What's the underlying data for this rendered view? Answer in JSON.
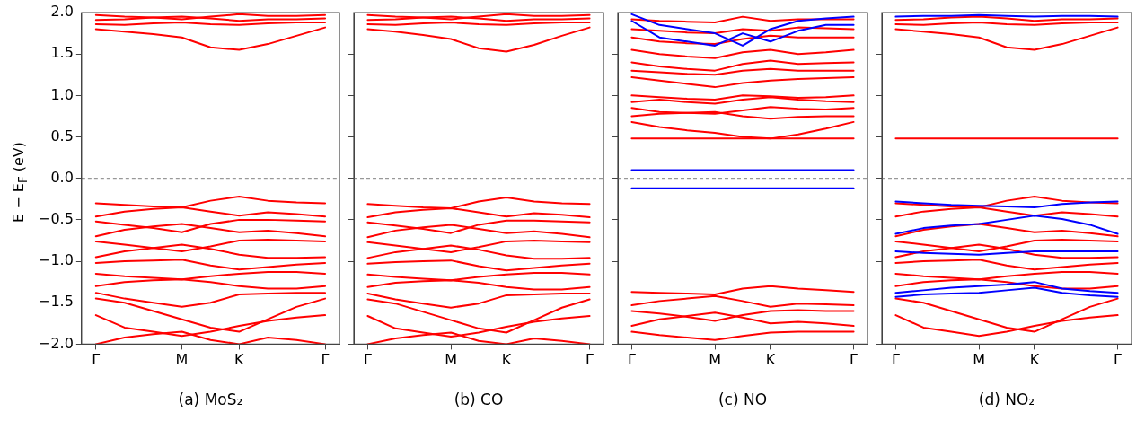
{
  "chart_data": [
    {
      "type": "line",
      "xlabel": "(a) MoS₂",
      "ylabel": "E − E$_{F}$ (eV)",
      "categories": [
        "Γ",
        null,
        null,
        "M",
        null,
        "K",
        null,
        null,
        "Γ"
      ],
      "ylim": [
        -2,
        2
      ],
      "yticks": [
        {
          "value": -2,
          "label": "−2.0"
        },
        {
          "value": -1.5,
          "label": "−1.5"
        },
        {
          "value": -1,
          "label": "−1.0"
        },
        {
          "value": -0.5,
          "label": "−0.5"
        },
        {
          "value": 0,
          "label": "0.0"
        },
        {
          "value": 0.5,
          "label": "0.5"
        },
        {
          "value": 1,
          "label": "1.0"
        },
        {
          "value": 1.5,
          "label": "1.5"
        },
        {
          "value": 2,
          "label": "2.0"
        }
      ],
      "grid": false,
      "legend": false,
      "marker": "none",
      "line_style": "solid",
      "ref_lines": [
        {
          "axis": "y",
          "value": 0,
          "color": "#808080",
          "line_style": "dashed"
        }
      ],
      "series": [
        {
          "color": "#ff0000",
          "values": [
            1.8,
            1.77,
            1.74,
            1.7,
            1.58,
            1.55,
            1.62,
            1.72,
            1.82
          ]
        },
        {
          "color": "#ff0000",
          "values": [
            1.86,
            1.85,
            1.87,
            1.88,
            1.86,
            1.85,
            1.87,
            1.88,
            1.88
          ]
        },
        {
          "color": "#ff0000",
          "values": [
            1.91,
            1.92,
            1.94,
            1.95,
            1.93,
            1.9,
            1.92,
            1.92,
            1.93
          ]
        },
        {
          "color": "#ff0000",
          "values": [
            1.97,
            1.95,
            1.94,
            1.92,
            1.95,
            1.98,
            1.96,
            1.96,
            1.97
          ]
        },
        {
          "color": "#ff0000",
          "values": [
            -0.3,
            -0.32,
            -0.34,
            -0.35,
            -0.27,
            -0.22,
            -0.27,
            -0.29,
            -0.3
          ]
        },
        {
          "color": "#ff0000",
          "values": [
            -0.46,
            -0.4,
            -0.37,
            -0.35,
            -0.4,
            -0.45,
            -0.41,
            -0.43,
            -0.46
          ]
        },
        {
          "color": "#ff0000",
          "values": [
            -0.52,
            -0.56,
            -0.6,
            -0.65,
            -0.55,
            -0.5,
            -0.5,
            -0.51,
            -0.52
          ]
        },
        {
          "color": "#ff0000",
          "values": [
            -0.7,
            -0.62,
            -0.58,
            -0.55,
            -0.6,
            -0.65,
            -0.63,
            -0.66,
            -0.7
          ]
        },
        {
          "color": "#ff0000",
          "values": [
            -0.76,
            -0.8,
            -0.84,
            -0.88,
            -0.82,
            -0.75,
            -0.74,
            -0.75,
            -0.76
          ]
        },
        {
          "color": "#ff0000",
          "values": [
            -0.95,
            -0.88,
            -0.84,
            -0.8,
            -0.85,
            -0.92,
            -0.96,
            -0.96,
            -0.95
          ]
        },
        {
          "color": "#ff0000",
          "values": [
            -1.02,
            -1,
            -0.99,
            -0.98,
            -1.05,
            -1.1,
            -1.07,
            -1.04,
            -1.02
          ]
        },
        {
          "color": "#ff0000",
          "values": [
            -1.15,
            -1.18,
            -1.2,
            -1.22,
            -1.18,
            -1.15,
            -1.13,
            -1.13,
            -1.15
          ]
        },
        {
          "color": "#ff0000",
          "values": [
            -1.3,
            -1.25,
            -1.23,
            -1.22,
            -1.25,
            -1.3,
            -1.33,
            -1.33,
            -1.3
          ]
        },
        {
          "color": "#ff0000",
          "values": [
            -1.38,
            -1.45,
            -1.5,
            -1.55,
            -1.5,
            -1.4,
            -1.39,
            -1.38,
            -1.38
          ]
        },
        {
          "color": "#ff0000",
          "values": [
            -1.45,
            -1.5,
            -1.6,
            -1.7,
            -1.8,
            -1.85,
            -1.7,
            -1.55,
            -1.45
          ]
        },
        {
          "color": "#ff0000",
          "values": [
            -1.65,
            -1.8,
            -1.85,
            -1.9,
            -1.85,
            -1.78,
            -1.72,
            -1.68,
            -1.65
          ]
        },
        {
          "color": "#ff0000",
          "values": [
            -2,
            -1.92,
            -1.88,
            -1.85,
            -1.95,
            -2,
            -1.92,
            -1.95,
            -2
          ]
        }
      ]
    },
    {
      "type": "line",
      "xlabel": "(b) CO",
      "tick_labels": "x",
      "categories": [
        "Γ",
        null,
        null,
        "M",
        null,
        "K",
        null,
        null,
        "Γ"
      ],
      "ylim": [
        -2,
        2
      ],
      "yticks": [
        {
          "value": -2,
          "label": null
        },
        {
          "value": -1.5,
          "label": null
        },
        {
          "value": -1,
          "label": null
        },
        {
          "value": -0.5,
          "label": null
        },
        {
          "value": 0,
          "label": null
        },
        {
          "value": 0.5,
          "label": null
        },
        {
          "value": 1,
          "label": null
        },
        {
          "value": 1.5,
          "label": null
        },
        {
          "value": 2,
          "label": null
        }
      ],
      "grid": false,
      "legend": false,
      "marker": "none",
      "line_style": "solid",
      "ref_lines": [
        {
          "axis": "y",
          "value": 0,
          "color": "#808080",
          "line_style": "dashed"
        }
      ],
      "series": [
        {
          "color": "#ff0000",
          "values": [
            1.8,
            1.77,
            1.73,
            1.68,
            1.57,
            1.53,
            1.61,
            1.72,
            1.82
          ]
        },
        {
          "color": "#ff0000",
          "values": [
            1.86,
            1.85,
            1.87,
            1.88,
            1.86,
            1.85,
            1.87,
            1.88,
            1.88
          ]
        },
        {
          "color": "#ff0000",
          "values": [
            1.91,
            1.92,
            1.94,
            1.95,
            1.93,
            1.9,
            1.92,
            1.92,
            1.93
          ]
        },
        {
          "color": "#ff0000",
          "values": [
            1.97,
            1.95,
            1.94,
            1.92,
            1.95,
            1.98,
            1.96,
            1.96,
            1.97
          ]
        },
        {
          "color": "#ff0000",
          "values": [
            -0.31,
            -0.33,
            -0.35,
            -0.36,
            -0.28,
            -0.23,
            -0.28,
            -0.3,
            -0.31
          ]
        },
        {
          "color": "#ff0000",
          "values": [
            -0.47,
            -0.41,
            -0.38,
            -0.36,
            -0.41,
            -0.46,
            -0.42,
            -0.44,
            -0.47
          ]
        },
        {
          "color": "#ff0000",
          "values": [
            -0.53,
            -0.57,
            -0.61,
            -0.66,
            -0.56,
            -0.51,
            -0.51,
            -0.52,
            -0.53
          ]
        },
        {
          "color": "#ff0000",
          "values": [
            -0.71,
            -0.63,
            -0.59,
            -0.56,
            -0.61,
            -0.66,
            -0.64,
            -0.67,
            -0.71
          ]
        },
        {
          "color": "#ff0000",
          "values": [
            -0.77,
            -0.81,
            -0.85,
            -0.89,
            -0.83,
            -0.76,
            -0.75,
            -0.76,
            -0.77
          ]
        },
        {
          "color": "#ff0000",
          "values": [
            -0.96,
            -0.89,
            -0.85,
            -0.81,
            -0.86,
            -0.93,
            -0.97,
            -0.97,
            -0.96
          ]
        },
        {
          "color": "#ff0000",
          "values": [
            -1.03,
            -1.01,
            -1,
            -0.99,
            -1.06,
            -1.11,
            -1.08,
            -1.05,
            -1.03
          ]
        },
        {
          "color": "#ff0000",
          "values": [
            -1.16,
            -1.19,
            -1.21,
            -1.23,
            -1.19,
            -1.16,
            -1.14,
            -1.14,
            -1.16
          ]
        },
        {
          "color": "#ff0000",
          "values": [
            -1.31,
            -1.26,
            -1.24,
            -1.23,
            -1.26,
            -1.31,
            -1.34,
            -1.34,
            -1.31
          ]
        },
        {
          "color": "#ff0000",
          "values": [
            -1.39,
            -1.46,
            -1.51,
            -1.56,
            -1.51,
            -1.41,
            -1.4,
            -1.39,
            -1.39
          ]
        },
        {
          "color": "#ff0000",
          "values": [
            -1.46,
            -1.51,
            -1.61,
            -1.71,
            -1.81,
            -1.86,
            -1.71,
            -1.56,
            -1.46
          ]
        },
        {
          "color": "#ff0000",
          "values": [
            -1.66,
            -1.81,
            -1.86,
            -1.91,
            -1.86,
            -1.79,
            -1.73,
            -1.69,
            -1.66
          ]
        },
        {
          "color": "#ff0000",
          "values": [
            -2,
            -1.93,
            -1.89,
            -1.86,
            -1.96,
            -2,
            -1.93,
            -1.96,
            -2
          ]
        }
      ]
    },
    {
      "type": "line",
      "xlabel": "(c) NO",
      "tick_labels": "x",
      "categories": [
        "Γ",
        null,
        null,
        "M",
        null,
        "K",
        null,
        null,
        "Γ"
      ],
      "ylim": [
        -2,
        2
      ],
      "yticks": [
        {
          "value": -2,
          "label": null
        },
        {
          "value": -1.5,
          "label": null
        },
        {
          "value": -1,
          "label": null
        },
        {
          "value": -0.5,
          "label": null
        },
        {
          "value": 0,
          "label": null
        },
        {
          "value": 0.5,
          "label": null
        },
        {
          "value": 1,
          "label": null
        },
        {
          "value": 1.5,
          "label": null
        },
        {
          "value": 2,
          "label": null
        }
      ],
      "grid": false,
      "legend": false,
      "marker": "none",
      "line_style": "solid",
      "ref_lines": [
        {
          "axis": "y",
          "value": 0,
          "color": "#808080",
          "line_style": "dashed"
        }
      ],
      "series": [
        {
          "color": "#0000ff",
          "values": [
            1.98,
            1.85,
            1.8,
            1.75,
            1.6,
            1.8,
            1.9,
            1.93,
            1.95
          ]
        },
        {
          "color": "#0000ff",
          "values": [
            1.9,
            1.7,
            1.65,
            1.6,
            1.75,
            1.65,
            1.78,
            1.85,
            1.85
          ]
        },
        {
          "color": "#0000ff",
          "values": [
            0.1,
            0.1,
            0.1,
            0.1,
            0.1,
            0.1,
            0.1,
            0.1,
            0.1
          ]
        },
        {
          "color": "#0000ff",
          "values": [
            -0.12,
            -0.12,
            -0.12,
            -0.12,
            -0.12,
            -0.12,
            -0.12,
            -0.12,
            -0.12
          ]
        },
        {
          "color": "#ff0000",
          "values": [
            0.48,
            0.48,
            0.48,
            0.48,
            0.48,
            0.48,
            0.48,
            0.48,
            0.48
          ]
        },
        {
          "color": "#ff0000",
          "values": [
            0.68,
            0.62,
            0.58,
            0.55,
            0.5,
            0.48,
            0.53,
            0.6,
            0.68
          ]
        },
        {
          "color": "#ff0000",
          "values": [
            0.75,
            0.78,
            0.79,
            0.8,
            0.75,
            0.72,
            0.74,
            0.75,
            0.75
          ]
        },
        {
          "color": "#ff0000",
          "values": [
            0.85,
            0.8,
            0.79,
            0.78,
            0.82,
            0.86,
            0.84,
            0.83,
            0.85
          ]
        },
        {
          "color": "#ff0000",
          "values": [
            0.92,
            0.95,
            0.92,
            0.9,
            0.95,
            0.98,
            0.95,
            0.93,
            0.92
          ]
        },
        {
          "color": "#ff0000",
          "values": [
            1,
            0.98,
            0.96,
            0.95,
            1,
            0.99,
            0.97,
            0.98,
            1
          ]
        },
        {
          "color": "#ff0000",
          "values": [
            1.22,
            1.18,
            1.14,
            1.1,
            1.15,
            1.18,
            1.2,
            1.21,
            1.22
          ]
        },
        {
          "color": "#ff0000",
          "values": [
            1.3,
            1.28,
            1.26,
            1.25,
            1.3,
            1.32,
            1.3,
            1.3,
            1.3
          ]
        },
        {
          "color": "#ff0000",
          "values": [
            1.4,
            1.35,
            1.32,
            1.3,
            1.38,
            1.42,
            1.38,
            1.39,
            1.4
          ]
        },
        {
          "color": "#ff0000",
          "values": [
            1.55,
            1.5,
            1.47,
            1.45,
            1.52,
            1.55,
            1.5,
            1.52,
            1.55
          ]
        },
        {
          "color": "#ff0000",
          "values": [
            1.7,
            1.65,
            1.63,
            1.62,
            1.68,
            1.72,
            1.7,
            1.7,
            1.7
          ]
        },
        {
          "color": "#ff0000",
          "values": [
            1.8,
            1.78,
            1.76,
            1.75,
            1.8,
            1.78,
            1.82,
            1.81,
            1.8
          ]
        },
        {
          "color": "#ff0000",
          "values": [
            1.92,
            1.9,
            1.89,
            1.88,
            1.95,
            1.9,
            1.92,
            1.92,
            1.92
          ]
        },
        {
          "color": "#ff0000",
          "values": [
            -1.37,
            -1.38,
            -1.39,
            -1.4,
            -1.33,
            -1.3,
            -1.33,
            -1.35,
            -1.37
          ]
        },
        {
          "color": "#ff0000",
          "values": [
            -1.53,
            -1.48,
            -1.45,
            -1.42,
            -1.48,
            -1.55,
            -1.51,
            -1.52,
            -1.53
          ]
        },
        {
          "color": "#ff0000",
          "values": [
            -1.6,
            -1.63,
            -1.67,
            -1.72,
            -1.65,
            -1.6,
            -1.59,
            -1.6,
            -1.6
          ]
        },
        {
          "color": "#ff0000",
          "values": [
            -1.78,
            -1.7,
            -1.66,
            -1.62,
            -1.68,
            -1.75,
            -1.73,
            -1.75,
            -1.78
          ]
        },
        {
          "color": "#ff0000",
          "values": [
            -1.85,
            -1.89,
            -1.92,
            -1.95,
            -1.9,
            -1.86,
            -1.85,
            -1.85,
            -1.85
          ]
        }
      ]
    },
    {
      "type": "line",
      "xlabel": "(d) NO₂",
      "tick_labels": "x",
      "categories": [
        "Γ",
        null,
        null,
        "M",
        null,
        "K",
        null,
        null,
        "Γ"
      ],
      "ylim": [
        -2,
        2
      ],
      "yticks": [
        {
          "value": -2,
          "label": null
        },
        {
          "value": -1.5,
          "label": null
        },
        {
          "value": -1,
          "label": null
        },
        {
          "value": -0.5,
          "label": null
        },
        {
          "value": 0,
          "label": null
        },
        {
          "value": 0.5,
          "label": null
        },
        {
          "value": 1,
          "label": null
        },
        {
          "value": 1.5,
          "label": null
        },
        {
          "value": 2,
          "label": null
        }
      ],
      "grid": false,
      "legend": false,
      "marker": "none",
      "line_style": "solid",
      "ref_lines": [
        {
          "axis": "y",
          "value": 0,
          "color": "#808080",
          "line_style": "dashed"
        }
      ],
      "series": [
        {
          "color": "#0000ff",
          "values": [
            1.95,
            1.96,
            1.96,
            1.97,
            1.96,
            1.95,
            1.96,
            1.96,
            1.95
          ]
        },
        {
          "color": "#0000ff",
          "values": [
            -0.28,
            -0.3,
            -0.32,
            -0.33,
            -0.34,
            -0.35,
            -0.31,
            -0.29,
            -0.28
          ]
        },
        {
          "color": "#0000ff",
          "values": [
            -0.67,
            -0.6,
            -0.57,
            -0.55,
            -0.5,
            -0.45,
            -0.49,
            -0.56,
            -0.67
          ]
        },
        {
          "color": "#0000ff",
          "values": [
            -0.88,
            -0.9,
            -0.91,
            -0.92,
            -0.9,
            -0.88,
            -0.88,
            -0.88,
            -0.88
          ]
        },
        {
          "color": "#0000ff",
          "values": [
            -1.38,
            -1.35,
            -1.32,
            -1.3,
            -1.28,
            -1.25,
            -1.33,
            -1.36,
            -1.38
          ]
        },
        {
          "color": "#0000ff",
          "values": [
            -1.43,
            -1.4,
            -1.39,
            -1.38,
            -1.35,
            -1.32,
            -1.38,
            -1.41,
            -1.43
          ]
        },
        {
          "color": "#ff0000",
          "values": [
            0.48,
            0.48,
            0.48,
            0.48,
            0.48,
            0.48,
            0.48,
            0.48,
            0.48
          ]
        },
        {
          "color": "#ff0000",
          "values": [
            1.8,
            1.77,
            1.74,
            1.7,
            1.58,
            1.55,
            1.62,
            1.72,
            1.82
          ]
        },
        {
          "color": "#ff0000",
          "values": [
            1.86,
            1.85,
            1.87,
            1.88,
            1.86,
            1.85,
            1.87,
            1.88,
            1.88
          ]
        },
        {
          "color": "#ff0000",
          "values": [
            1.91,
            1.92,
            1.94,
            1.95,
            1.93,
            1.9,
            1.92,
            1.92,
            1.93
          ]
        },
        {
          "color": "#ff0000",
          "values": [
            -0.3,
            -0.32,
            -0.34,
            -0.35,
            -0.27,
            -0.22,
            -0.27,
            -0.29,
            -0.3
          ]
        },
        {
          "color": "#ff0000",
          "values": [
            -0.46,
            -0.4,
            -0.37,
            -0.35,
            -0.4,
            -0.45,
            -0.41,
            -0.43,
            -0.46
          ]
        },
        {
          "color": "#ff0000",
          "values": [
            -0.7,
            -0.62,
            -0.58,
            -0.55,
            -0.6,
            -0.65,
            -0.63,
            -0.66,
            -0.7
          ]
        },
        {
          "color": "#ff0000",
          "values": [
            -0.76,
            -0.8,
            -0.84,
            -0.88,
            -0.82,
            -0.75,
            -0.74,
            -0.75,
            -0.76
          ]
        },
        {
          "color": "#ff0000",
          "values": [
            -0.95,
            -0.88,
            -0.84,
            -0.8,
            -0.85,
            -0.92,
            -0.96,
            -0.96,
            -0.95
          ]
        },
        {
          "color": "#ff0000",
          "values": [
            -1.02,
            -1,
            -0.99,
            -0.98,
            -1.05,
            -1.1,
            -1.07,
            -1.04,
            -1.02
          ]
        },
        {
          "color": "#ff0000",
          "values": [
            -1.15,
            -1.18,
            -1.2,
            -1.22,
            -1.18,
            -1.15,
            -1.13,
            -1.13,
            -1.15
          ]
        },
        {
          "color": "#ff0000",
          "values": [
            -1.3,
            -1.25,
            -1.23,
            -1.22,
            -1.25,
            -1.3,
            -1.33,
            -1.33,
            -1.3
          ]
        },
        {
          "color": "#ff0000",
          "values": [
            -1.45,
            -1.5,
            -1.6,
            -1.7,
            -1.8,
            -1.85,
            -1.7,
            -1.55,
            -1.45
          ]
        },
        {
          "color": "#ff0000",
          "values": [
            -1.65,
            -1.8,
            -1.85,
            -1.9,
            -1.85,
            -1.78,
            -1.72,
            -1.68,
            -1.65
          ]
        }
      ]
    }
  ]
}
